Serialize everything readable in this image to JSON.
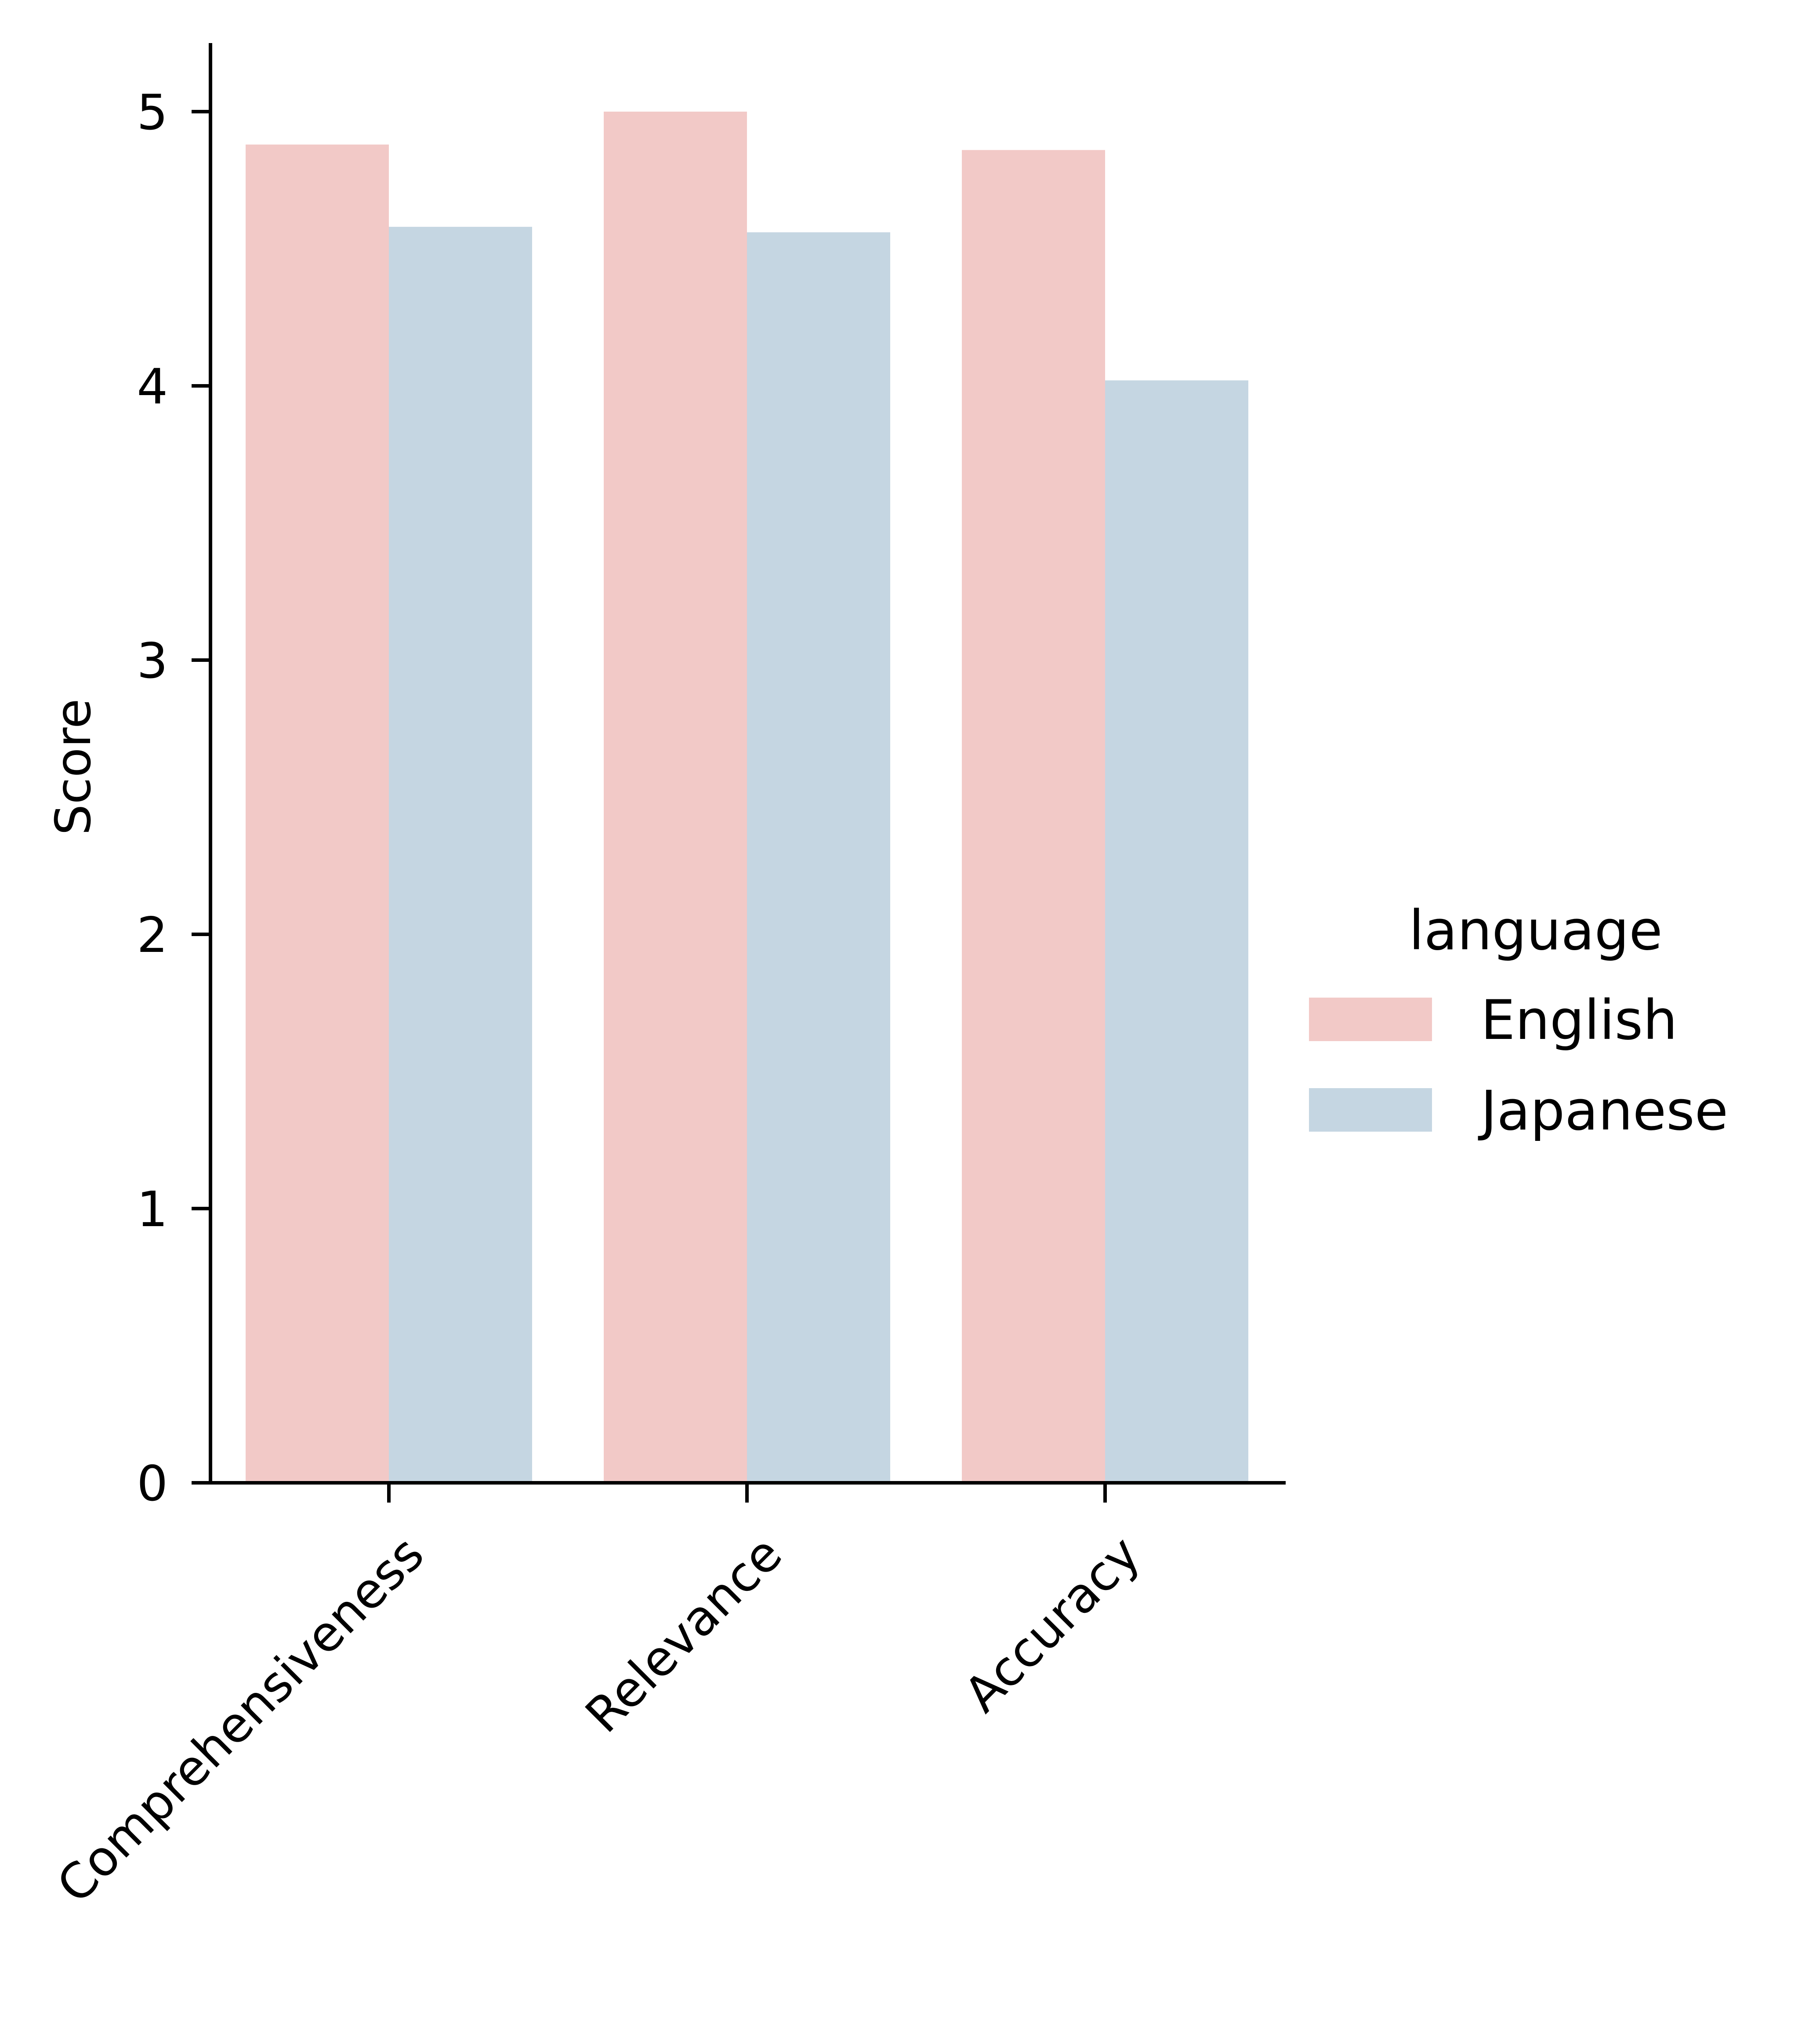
{
  "chart_data": {
    "type": "bar",
    "title": "",
    "xlabel": "",
    "ylabel": "Score",
    "categories": [
      "Comprehensiveness",
      "Relevance",
      "Accuracy"
    ],
    "series": [
      {
        "name": "English",
        "values": [
          4.88,
          5.0,
          4.86
        ],
        "color": "#f2c9c7"
      },
      {
        "name": "Japanese",
        "values": [
          4.58,
          4.56,
          4.02
        ],
        "color": "#c5d6e2"
      }
    ],
    "ylim": [
      0,
      5.25
    ],
    "yticks": [
      0,
      1,
      2,
      3,
      4,
      5
    ],
    "xtick_rotation_deg": 45,
    "grid": false,
    "legend": {
      "title": "language",
      "placement": "right-center",
      "entries": [
        "English",
        "Japanese"
      ]
    }
  }
}
